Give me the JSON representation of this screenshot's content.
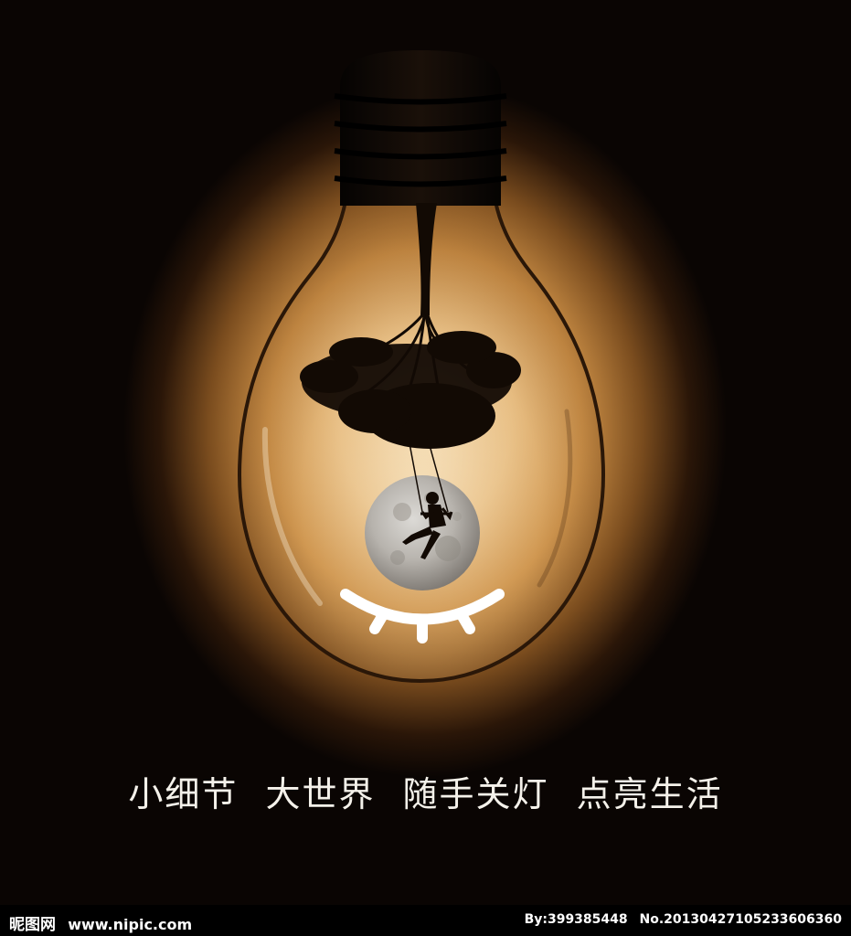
{
  "slogan": {
    "part1": "小细节",
    "part2": "大世界",
    "part3": "随手关灯",
    "part4": "点亮生活"
  },
  "watermark": {
    "site_name": "昵图网",
    "site_url": "www.nipic.com",
    "author": "By:399385448",
    "image_number": "No.20130427105233606360"
  },
  "colors": {
    "glow_center": "#f7e2bd",
    "glow_mid": "#c98d45",
    "background": "#000000",
    "text": "#f4f1ea"
  }
}
